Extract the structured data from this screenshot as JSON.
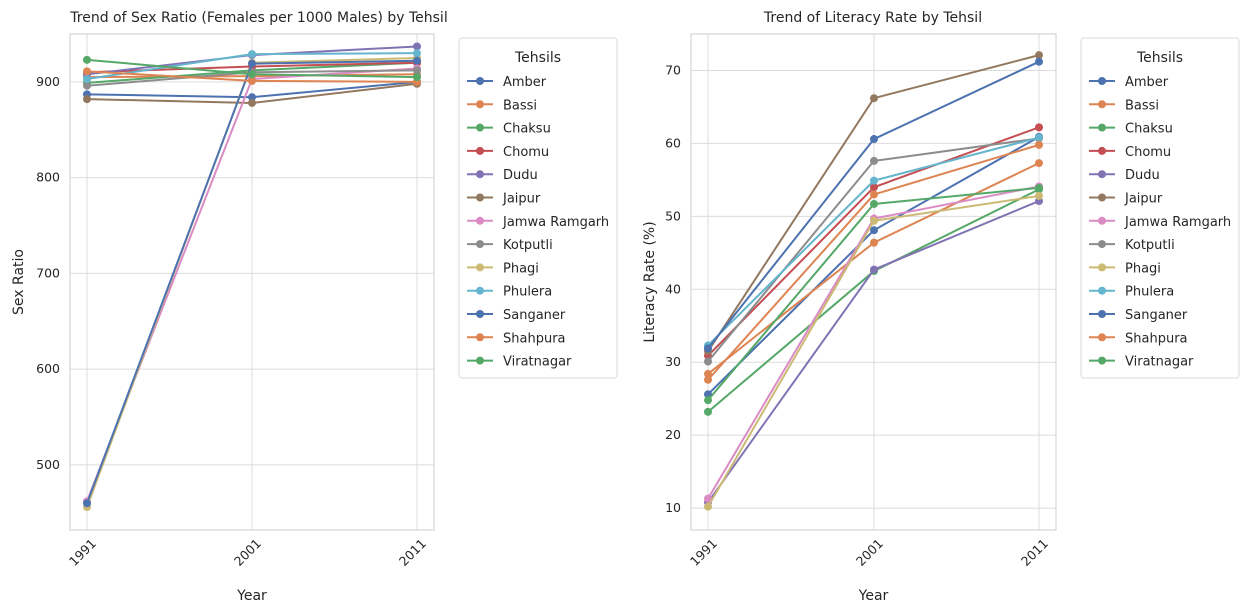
{
  "chart_data": [
    {
      "type": "line",
      "title": "Trend of Sex Ratio (Females per 1000 Males) by Tehsil",
      "xlabel": "Year",
      "ylabel": "Sex Ratio",
      "categories": [
        "1991",
        "2001",
        "2011"
      ],
      "yticks": [
        500,
        600,
        700,
        800,
        900
      ],
      "ylim": [
        432,
        950
      ],
      "grid": true,
      "legend_title": "Tehsils",
      "legend_position": "outside-right",
      "series": [
        {
          "name": "Amber",
          "color": "#4c72b0",
          "values": [
            887,
            884,
            900
          ]
        },
        {
          "name": "Bassi",
          "color": "#dd8452",
          "values": [
            905,
            906,
            908
          ]
        },
        {
          "name": "Chaksu",
          "color": "#55a868",
          "values": [
            899,
            912,
            920
          ]
        },
        {
          "name": "Chomu",
          "color": "#c44e52",
          "values": [
            910,
            916,
            920
          ]
        },
        {
          "name": "Dudu",
          "color": "#8172b3",
          "values": [
            908,
            928,
            937
          ]
        },
        {
          "name": "Jaipur",
          "color": "#937860",
          "values": [
            882,
            878,
            898
          ]
        },
        {
          "name": "Jamwa Ramgarh",
          "color": "#da8bc3",
          "values": [
            462,
            903,
            914
          ]
        },
        {
          "name": "Kotputli",
          "color": "#8c8c8c",
          "values": [
            896,
            910,
            912
          ]
        },
        {
          "name": "Phagi",
          "color": "#ccb974",
          "values": [
            456,
            920,
            925
          ]
        },
        {
          "name": "Phulera",
          "color": "#64b5cd",
          "values": [
            903,
            929,
            930
          ]
        },
        {
          "name": "Sanganer",
          "color": "#4c72b0",
          "values": [
            460,
            919,
            922
          ]
        },
        {
          "name": "Shahpura",
          "color": "#dd8452",
          "values": [
            911,
            901,
            900
          ]
        },
        {
          "name": "Viratnagar",
          "color": "#55a868",
          "values": [
            923,
            908,
            905
          ]
        }
      ]
    },
    {
      "type": "line",
      "title": "Trend of Literacy Rate by Tehsil",
      "xlabel": "Year",
      "ylabel": "Literacy Rate (%)",
      "categories": [
        "1991",
        "2001",
        "2011"
      ],
      "yticks": [
        10,
        20,
        30,
        40,
        50,
        60,
        70
      ],
      "ylim": [
        7,
        75
      ],
      "grid": true,
      "legend_title": "Tehsils",
      "legend_position": "outside-right",
      "series": [
        {
          "name": "Amber",
          "color": "#4c72b0",
          "values": [
            25.6,
            48.1,
            60.9
          ]
        },
        {
          "name": "Bassi",
          "color": "#dd8452",
          "values": [
            28.4,
            46.4,
            57.3
          ]
        },
        {
          "name": "Chaksu",
          "color": "#55a868",
          "values": [
            23.2,
            42.5,
            53.7
          ]
        },
        {
          "name": "Chomu",
          "color": "#c44e52",
          "values": [
            30.9,
            54.0,
            62.2
          ]
        },
        {
          "name": "Dudu",
          "color": "#8172b3",
          "values": [
            10.8,
            42.7,
            52.1
          ]
        },
        {
          "name": "Jaipur",
          "color": "#937860",
          "values": [
            31.5,
            66.2,
            72.1
          ]
        },
        {
          "name": "Jamwa Ramgarh",
          "color": "#da8bc3",
          "values": [
            11.3,
            49.7,
            54.1
          ]
        },
        {
          "name": "Kotputli",
          "color": "#8c8c8c",
          "values": [
            30.1,
            57.6,
            60.7
          ]
        },
        {
          "name": "Phagi",
          "color": "#ccb974",
          "values": [
            10.2,
            49.4,
            52.8
          ]
        },
        {
          "name": "Phulera",
          "color": "#64b5cd",
          "values": [
            32.3,
            54.9,
            60.8
          ]
        },
        {
          "name": "Sanganer",
          "color": "#4c72b0",
          "values": [
            31.9,
            60.6,
            71.2
          ]
        },
        {
          "name": "Shahpura",
          "color": "#dd8452",
          "values": [
            27.6,
            53.0,
            59.8
          ]
        },
        {
          "name": "Viratnagar",
          "color": "#55a868",
          "values": [
            24.8,
            51.7,
            53.9
          ]
        }
      ]
    }
  ]
}
